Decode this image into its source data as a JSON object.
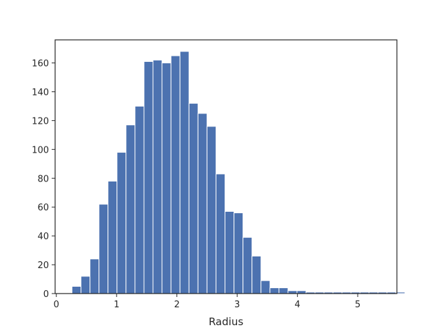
{
  "chart_data": {
    "type": "bar",
    "xlabel": "Radius",
    "ylabel": "",
    "xlim": [
      -0.02,
      5.65
    ],
    "ylim": [
      0,
      176
    ],
    "x_ticks": [
      0,
      1,
      2,
      3,
      4,
      5
    ],
    "y_ticks": [
      0,
      20,
      40,
      60,
      80,
      100,
      120,
      140,
      160
    ],
    "bin_start": 0.26,
    "bin_width": 0.1493,
    "values": [
      5,
      12,
      24,
      62,
      78,
      98,
      117,
      130,
      161,
      162,
      160,
      165,
      168,
      132,
      125,
      116,
      83,
      57,
      56,
      39,
      26,
      9,
      4,
      4,
      2,
      2,
      1,
      1,
      1,
      1,
      1,
      1,
      1,
      1,
      1,
      1,
      1
    ],
    "bar_color": "#4c72b0",
    "grid": false
  }
}
